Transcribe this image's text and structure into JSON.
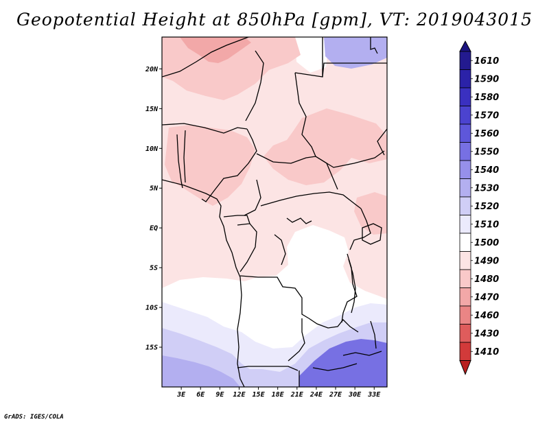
{
  "title": "Geopotential Height at 850hPa [gpm], VT: 2019043015",
  "credit": "GrADS: IGES/COLA",
  "map": {
    "lon_range": [
      0,
      35
    ],
    "lat_range": [
      -20,
      24
    ],
    "lat_ticks": [
      {
        "lat": 20,
        "label": "20N"
      },
      {
        "lat": 15,
        "label": "15N"
      },
      {
        "lat": 10,
        "label": "10N"
      },
      {
        "lat": 5,
        "label": "5N"
      },
      {
        "lat": 0,
        "label": "EQ"
      },
      {
        "lat": -5,
        "label": "5S"
      },
      {
        "lat": -10,
        "label": "10S"
      },
      {
        "lat": -15,
        "label": "15S"
      }
    ],
    "lon_ticks": [
      {
        "lon": 3,
        "label": "3E"
      },
      {
        "lon": 6,
        "label": "6E"
      },
      {
        "lon": 9,
        "label": "9E"
      },
      {
        "lon": 12,
        "label": "12E"
      },
      {
        "lon": 15,
        "label": "15E"
      },
      {
        "lon": 18,
        "label": "18E"
      },
      {
        "lon": 21,
        "label": "21E"
      },
      {
        "lon": 24,
        "label": "24E"
      },
      {
        "lon": 27,
        "label": "27E"
      },
      {
        "lon": 30,
        "label": "30E"
      },
      {
        "lon": 33,
        "label": "33E"
      }
    ]
  },
  "colorbar": {
    "levels": [
      {
        "label": "1610",
        "color": "#231a8f"
      },
      {
        "label": "1590",
        "color": "#2b22a8"
      },
      {
        "label": "1580",
        "color": "#3a30c0"
      },
      {
        "label": "1570",
        "color": "#4b43cf"
      },
      {
        "label": "1560",
        "color": "#5e57da"
      },
      {
        "label": "1550",
        "color": "#7770e3"
      },
      {
        "label": "1540",
        "color": "#9690ea"
      },
      {
        "label": "1530",
        "color": "#b3aff0"
      },
      {
        "label": "1520",
        "color": "#d0cef6"
      },
      {
        "label": "1510",
        "color": "#ebeafc"
      },
      {
        "label": "1500",
        "color": "#ffffff"
      },
      {
        "label": "1490",
        "color": "#fce4e4"
      },
      {
        "label": "1480",
        "color": "#f9c9c9"
      },
      {
        "label": "1470",
        "color": "#f2a8a8"
      },
      {
        "label": "1460",
        "color": "#ea8585"
      },
      {
        "label": "1430",
        "color": "#df5c5c"
      },
      {
        "label": "1410",
        "color": "#d23a3a"
      }
    ],
    "bottom_color": "#b81f1f",
    "top_color": "#1b1480"
  },
  "regions": [
    {
      "id": "white-north",
      "color": "#ffffff"
    },
    {
      "id": "pink-north",
      "color": "#fce4e4"
    },
    {
      "id": "salmon-sahara",
      "color": "#f9c9c9"
    },
    {
      "id": "red-core",
      "color": "#f2a8a8"
    },
    {
      "id": "salmon-sudan",
      "color": "#f9c9c9"
    },
    {
      "id": "salmon-car",
      "color": "#f9c9c9"
    },
    {
      "id": "white-congo",
      "color": "#ffffff"
    },
    {
      "id": "lavender-south",
      "color": "#ebeafc"
    },
    {
      "id": "lilac-south",
      "color": "#d0cef6"
    },
    {
      "id": "violet-south",
      "color": "#b3aff0"
    },
    {
      "id": "purple-southeast",
      "color": "#7770e3"
    },
    {
      "id": "lavender-northeast",
      "color": "#ebeafc"
    }
  ]
}
